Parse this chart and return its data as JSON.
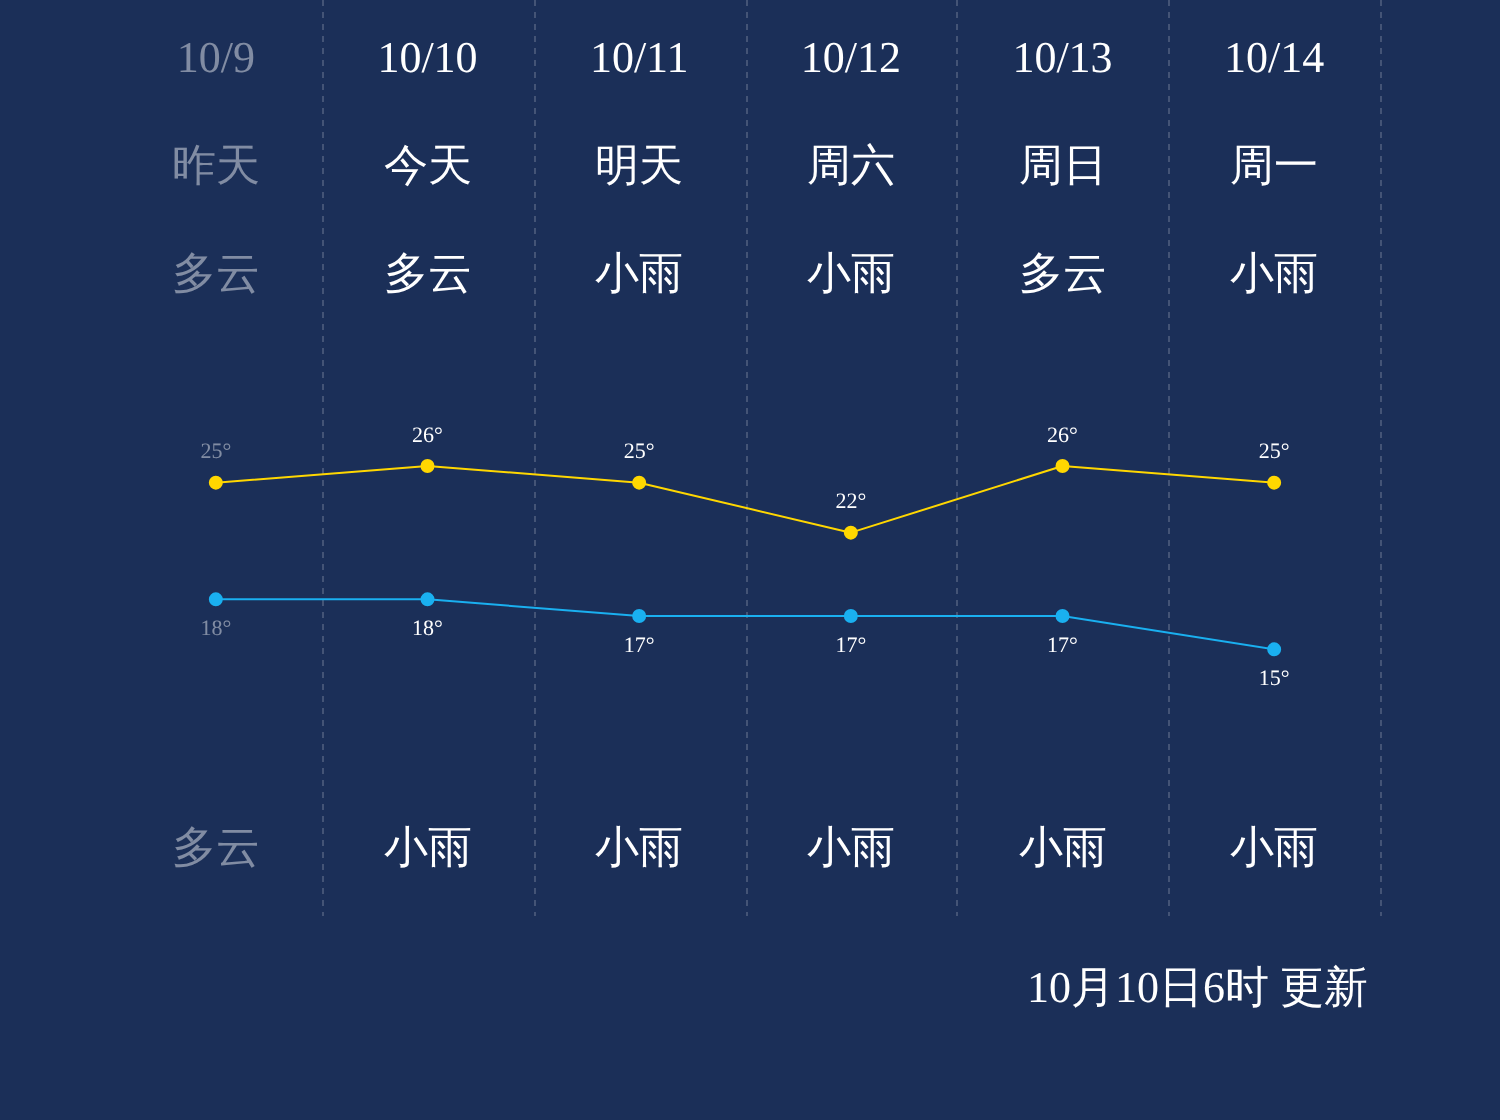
{
  "chart_data": {
    "type": "line",
    "categories": [
      "10/9",
      "10/10",
      "10/11",
      "10/12",
      "10/13",
      "10/14"
    ],
    "series": [
      {
        "color": "#ffd700",
        "values": [
          25,
          26,
          25,
          22,
          26,
          25
        ],
        "value_labels": [
          "25°",
          "26°",
          "25°",
          "22°",
          "26°",
          "25°"
        ]
      },
      {
        "color": "#1ab0f0",
        "values": [
          18,
          18,
          17,
          17,
          17,
          15
        ],
        "value_labels": [
          "18°",
          "18°",
          "17°",
          "17°",
          "17°",
          "15°"
        ]
      }
    ],
    "grid": "x",
    "marker": "circle",
    "legend": false,
    "annotations": [
      "昨天",
      "今天",
      "明天",
      "周六",
      "周日",
      "周一",
      "多云",
      "多云",
      "小雨",
      "小雨",
      "多云",
      "小雨",
      "多云",
      "小雨",
      "小雨",
      "小雨",
      "小雨",
      "小雨",
      "10月10日6时 更新"
    ]
  }
}
